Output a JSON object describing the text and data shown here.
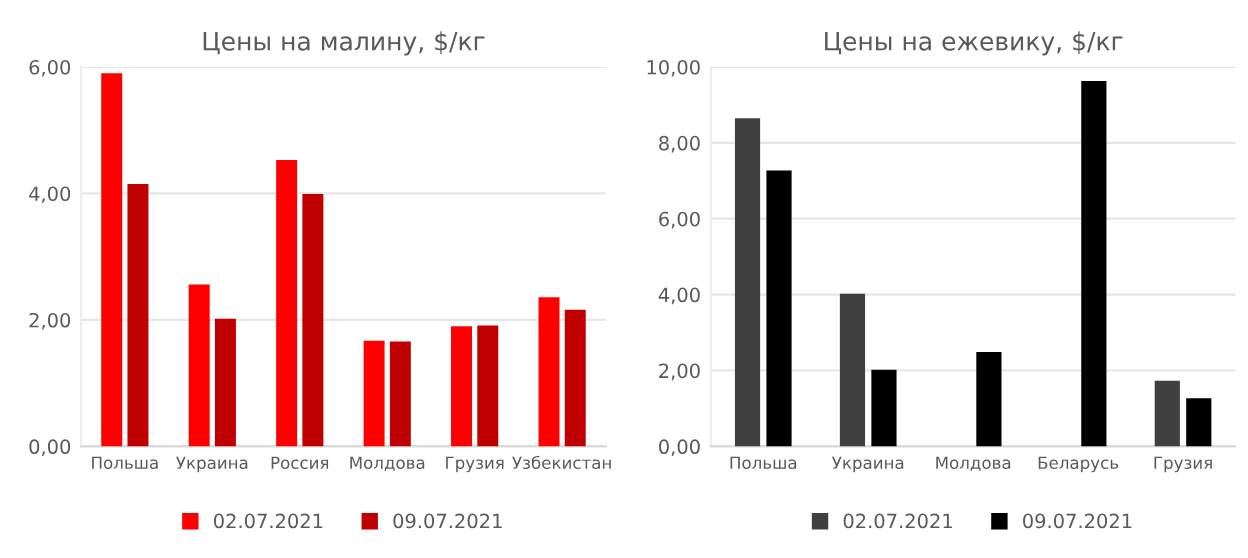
{
  "chart_data": [
    {
      "type": "bar",
      "title": "Цены на малину, $/кг",
      "categories": [
        "Польша",
        "Украина",
        "Россия",
        "Молдова",
        "Грузия",
        "Узбекистан"
      ],
      "series": [
        {
          "name": "02.07.2021",
          "color": "#ff0000",
          "values": [
            5.9,
            2.56,
            4.53,
            1.67,
            1.9,
            2.36
          ]
        },
        {
          "name": "09.07.2021",
          "color": "#c00000",
          "values": [
            4.15,
            2.02,
            3.99,
            1.66,
            1.91,
            2.16
          ]
        }
      ],
      "ylim": [
        0,
        6
      ],
      "yticks": [
        {
          "value": 0,
          "label": "0,00"
        },
        {
          "value": 2,
          "label": "2,00"
        },
        {
          "value": 4,
          "label": "4,00"
        },
        {
          "value": 6,
          "label": "6,00"
        }
      ],
      "grid": "y",
      "legend": "bottom"
    },
    {
      "type": "bar",
      "title": "Цены на ежевику, $/кг",
      "categories": [
        "Польша",
        "Украина",
        "Молдова",
        "Беларусь",
        "Грузия"
      ],
      "series": [
        {
          "name": "02.07.2021",
          "color": "#404040",
          "values": [
            8.65,
            4.02,
            null,
            null,
            1.73
          ]
        },
        {
          "name": "09.07.2021",
          "color": "#000000",
          "values": [
            7.27,
            2.02,
            2.49,
            9.63,
            1.27
          ]
        }
      ],
      "ylim": [
        0,
        10
      ],
      "yticks": [
        {
          "value": 0,
          "label": "0,00"
        },
        {
          "value": 2,
          "label": "2,00"
        },
        {
          "value": 4,
          "label": "4,00"
        },
        {
          "value": 6,
          "label": "6,00"
        },
        {
          "value": 8,
          "label": "8,00"
        },
        {
          "value": 10,
          "label": "10,00"
        }
      ],
      "grid": "y",
      "legend": "bottom"
    }
  ]
}
